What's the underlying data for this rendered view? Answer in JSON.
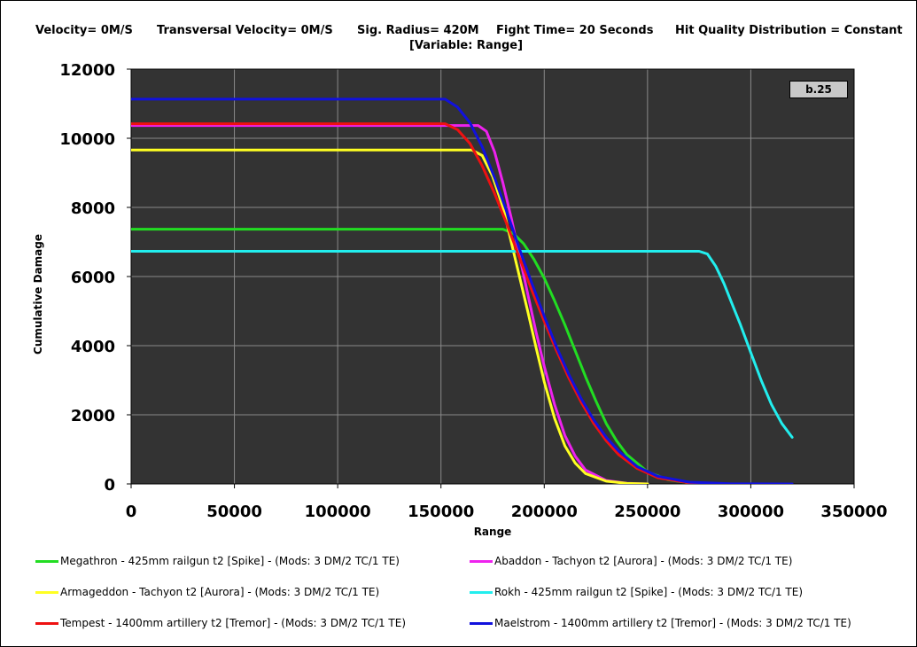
{
  "header": {
    "velocity": "Velocity= 0M/S",
    "transversal": "Transversal Velocity= 0M/S",
    "sig_radius": "Sig. Radius= 420M",
    "fight_time": "Fight Time= 20 Seconds",
    "hit_quality": "Hit Quality Distribution = Constant",
    "variable": "[Variable: Range]"
  },
  "badge": "b.25",
  "chart_data": {
    "type": "line",
    "title": "",
    "xlabel": "Range",
    "ylabel": "Cumulative Damage",
    "xlim": [
      0,
      350000
    ],
    "ylim": [
      0,
      12000
    ],
    "x_ticks": [
      "0",
      "50000",
      "100000",
      "150000",
      "200000",
      "250000",
      "300000",
      "350000"
    ],
    "y_ticks": [
      "0",
      "2000",
      "4000",
      "6000",
      "8000",
      "10000",
      "12000"
    ],
    "grid": true,
    "background": "#333333",
    "legend_position": "bottom",
    "series": [
      {
        "name": "Megathron - 425mm railgun t2 [Spike] - (Mods: 3 DM/2 TC/1 TE)",
        "color": "#22dd22",
        "x": [
          0,
          180000,
          185000,
          190000,
          195000,
          200000,
          205000,
          210000,
          215000,
          220000,
          225000,
          230000,
          235000,
          240000,
          250000,
          260000,
          270000,
          280000
        ],
        "y": [
          7370,
          7370,
          7250,
          6950,
          6500,
          5950,
          5300,
          4600,
          3850,
          3100,
          2400,
          1750,
          1250,
          850,
          350,
          120,
          30,
          0
        ]
      },
      {
        "name": "Abaddon - Tachyon t2 [Aurora] - (Mods: 3 DM/2 TC/1 TE)",
        "color": "#ee22ee",
        "x": [
          0,
          168000,
          172000,
          176000,
          180000,
          184000,
          188000,
          192000,
          196000,
          200000,
          205000,
          210000,
          215000,
          220000,
          230000,
          240000,
          250000
        ],
        "y": [
          10370,
          10370,
          10200,
          9600,
          8700,
          7700,
          6600,
          5500,
          4400,
          3400,
          2300,
          1400,
          800,
          400,
          100,
          20,
          0
        ]
      },
      {
        "name": "Armageddon - Tachyon t2 [Aurora] - (Mods: 3 DM/2 TC/1 TE)",
        "color": "#ffff22",
        "x": [
          0,
          165000,
          170000,
          175000,
          180000,
          184000,
          188000,
          192000,
          196000,
          200000,
          205000,
          210000,
          215000,
          220000,
          230000,
          240000,
          250000
        ],
        "y": [
          9660,
          9660,
          9500,
          8900,
          8000,
          7000,
          6000,
          5000,
          3950,
          2950,
          1900,
          1100,
          600,
          300,
          80,
          15,
          0
        ]
      },
      {
        "name": "Rokh - 425mm railgun t2 [Spike] - (Mods: 3 DM/2 TC/1 TE)",
        "color": "#22eeee",
        "x": [
          0,
          275000,
          279000,
          283000,
          287000,
          291000,
          295000,
          300000,
          305000,
          310000,
          315000,
          320000
        ],
        "y": [
          6730,
          6730,
          6650,
          6300,
          5800,
          5200,
          4600,
          3800,
          3000,
          2300,
          1750,
          1350
        ]
      },
      {
        "name": "Tempest - 1400mm artillery t2 [Tremor] - (Mods: 3 DM/2 TC/1 TE)",
        "color": "#ee1111",
        "x": [
          0,
          152000,
          158000,
          164000,
          170000,
          176000,
          182000,
          188000,
          194000,
          200000,
          206000,
          212000,
          218000,
          224000,
          230000,
          236000,
          245000,
          255000,
          270000,
          280000
        ],
        "y": [
          10420,
          10420,
          10250,
          9850,
          9200,
          8400,
          7500,
          6550,
          5600,
          4700,
          3850,
          3050,
          2350,
          1750,
          1250,
          850,
          450,
          180,
          30,
          0
        ]
      },
      {
        "name": "Maelstrom - 1400mm artillery t2 [Tremor] - (Mods: 3 DM/2 TC/1 TE)",
        "color": "#1111dd",
        "x": [
          0,
          152000,
          158000,
          164000,
          170000,
          176000,
          182000,
          188000,
          194000,
          200000,
          206000,
          212000,
          218000,
          224000,
          230000,
          236000,
          245000,
          255000,
          270000,
          290000,
          320000
        ],
        "y": [
          11130,
          11130,
          10900,
          10450,
          9750,
          8850,
          7850,
          6800,
          5800,
          4850,
          3950,
          3150,
          2450,
          1850,
          1350,
          950,
          500,
          220,
          50,
          5,
          0
        ]
      }
    ]
  }
}
